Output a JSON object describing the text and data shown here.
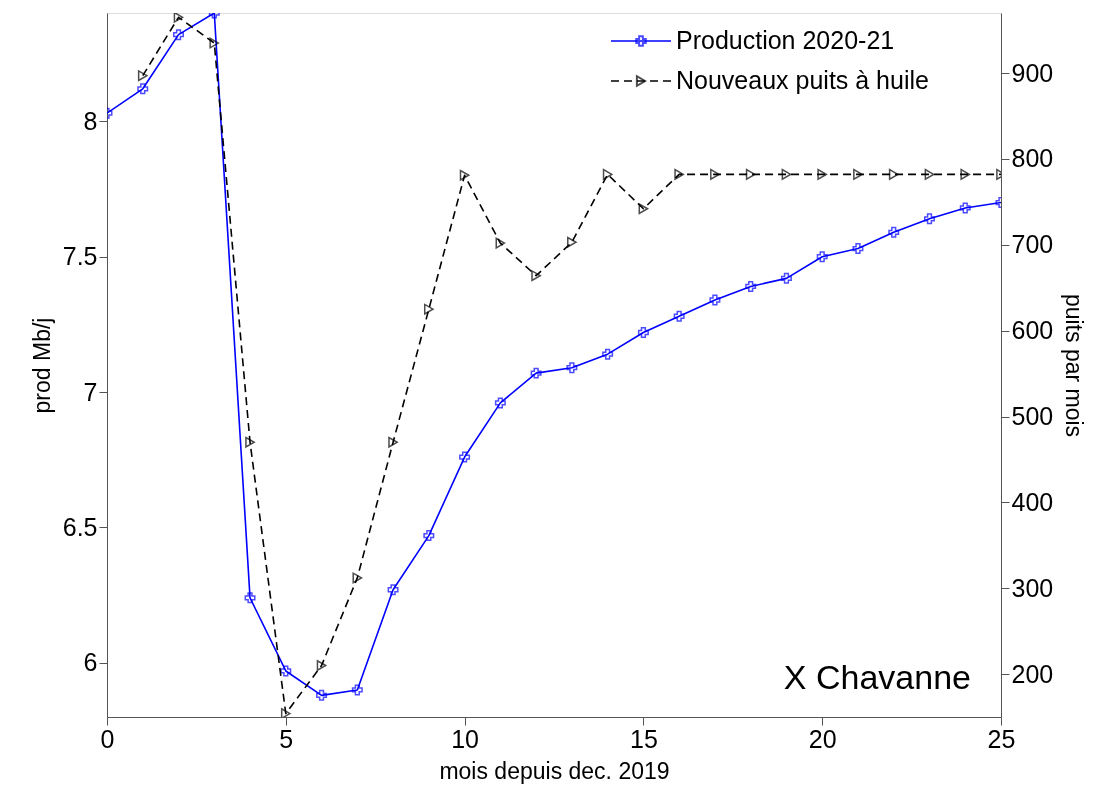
{
  "chart_data": {
    "type": "line",
    "xlabel": "mois depuis dec. 2019",
    "ylabel": "prod Mb/j",
    "y2label": "puits par mois",
    "xlim": [
      0,
      25
    ],
    "xticks": [
      0,
      5,
      10,
      15,
      20,
      25
    ],
    "ylim": [
      5.8,
      8.4
    ],
    "yticks": [
      6,
      6.5,
      7,
      7.5,
      8
    ],
    "y2lim": [
      150,
      970
    ],
    "y2ticks": [
      200,
      300,
      400,
      500,
      600,
      700,
      800,
      900
    ],
    "grid": false,
    "legend": "top right",
    "annotations": [
      "X Chavanne"
    ],
    "series": [
      {
        "name": "Production 2020-21",
        "color": "#0000ff",
        "marker": "cross",
        "line_style": "solid",
        "x": [
          0,
          1,
          2,
          3,
          4,
          5,
          6,
          7,
          8,
          9,
          10,
          11,
          12,
          13,
          14,
          15,
          16,
          17,
          18,
          19,
          20,
          21,
          22,
          23,
          24,
          25
        ],
        "values": [
          8.03,
          8.12,
          8.32,
          8.4,
          6.24,
          5.97,
          5.88,
          5.9,
          6.27,
          6.47,
          6.76,
          6.96,
          7.07,
          7.09,
          7.14,
          7.22,
          7.28,
          7.34,
          7.39,
          7.42,
          7.5,
          7.53,
          7.59,
          7.64,
          7.68,
          7.7
        ]
      },
      {
        "name": "Nouveaux puits à huile",
        "color": "#000000",
        "marker": "triangle",
        "line_style": "dashed",
        "axis": "y2",
        "x": [
          1,
          2,
          3,
          4,
          5,
          6,
          7,
          8,
          9,
          10,
          11,
          12,
          13,
          14,
          15,
          16,
          17,
          18,
          19,
          20,
          21,
          22,
          23,
          24,
          25
        ],
        "values": [
          897,
          965,
          935,
          470,
          154,
          210,
          312,
          470,
          625,
          781,
          702,
          664,
          703,
          782,
          742,
          782,
          782,
          782,
          782,
          782,
          782,
          782,
          782,
          782,
          782
        ]
      }
    ]
  }
}
